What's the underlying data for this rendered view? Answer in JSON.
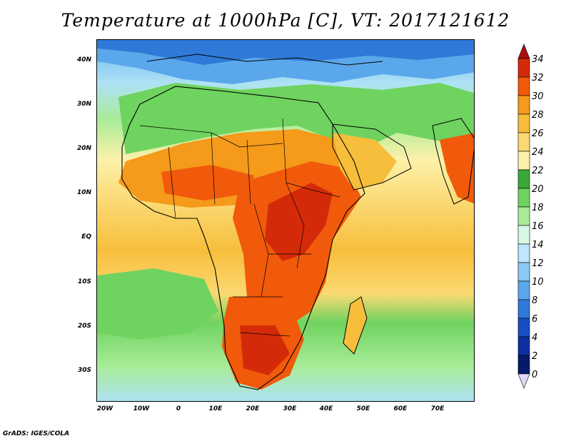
{
  "title": "Temperature at 1000hPa [C], VT: 2017121612",
  "credit": "GrADS: IGES/COLA",
  "map": {
    "region": "Africa, Middle East and western Indian Ocean",
    "x_ticks": [
      "20W",
      "10W",
      "0",
      "10E",
      "20E",
      "30E",
      "40E",
      "50E",
      "60E",
      "70E"
    ],
    "y_ticks": [
      "40N",
      "30N",
      "20N",
      "10N",
      "EQ",
      "10S",
      "20S",
      "30S"
    ]
  },
  "colorbar": {
    "levels": [
      "34",
      "32",
      "30",
      "28",
      "26",
      "24",
      "22",
      "20",
      "18",
      "16",
      "14",
      "12",
      "10",
      "8",
      "6",
      "4",
      "2",
      "0"
    ],
    "colors": [
      "#a50f0f",
      "#d42a0a",
      "#f05a0a",
      "#f59a1a",
      "#f7be3c",
      "#fbd972",
      "#fdf1aa",
      "#3aa83a",
      "#6fd35f",
      "#a8ec98",
      "#d8f8e6",
      "#bde6ff",
      "#8cc8f5",
      "#5aa8eb",
      "#2f7ad8",
      "#174fc0",
      "#0d2fa0",
      "#041a6b",
      "#e0d8f8"
    ]
  }
}
